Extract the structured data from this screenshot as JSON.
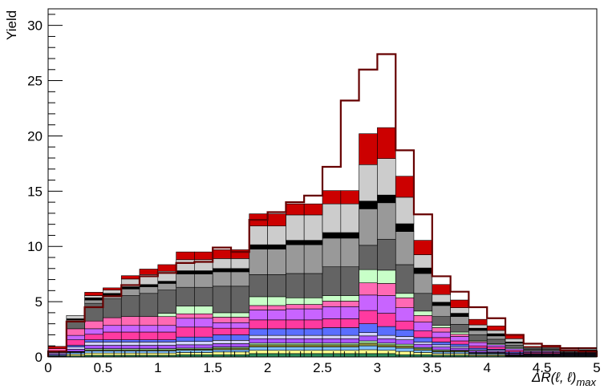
{
  "chart_data": {
    "type": "bar",
    "subtype": "stacked-histogram",
    "title": "",
    "xlabel": "ΔR(ℓ, ℓ)max",
    "ylabel": "Yield",
    "xlim": [
      0,
      5
    ],
    "ylim": [
      0,
      31.5
    ],
    "xticks": [
      "0",
      "0.5",
      "1",
      "1.5",
      "2",
      "2.5",
      "3",
      "3.5",
      "4",
      "4.5",
      "5"
    ],
    "yticks": [
      "0",
      "5",
      "10",
      "15",
      "20",
      "25",
      "30"
    ],
    "bin_edges": [
      0,
      0.167,
      0.333,
      0.5,
      0.667,
      0.833,
      1.0,
      1.167,
      1.333,
      1.5,
      1.667,
      1.833,
      2.0,
      2.167,
      2.333,
      2.5,
      2.667,
      2.833,
      3.0,
      3.167,
      3.333,
      3.5,
      3.667,
      3.833,
      4.0,
      4.167,
      4.333,
      4.5,
      4.667,
      4.833,
      5.0
    ],
    "series": [
      {
        "color": "#2a8c5a",
        "values": [
          0.05,
          0.1,
          0.15,
          0.15,
          0.15,
          0.15,
          0.15,
          0.2,
          0.2,
          0.2,
          0.2,
          0.3,
          0.3,
          0.3,
          0.3,
          0.3,
          0.3,
          0.3,
          0.3,
          0.2,
          0.2,
          0.15,
          0.15,
          0.1,
          0.1,
          0.05,
          0.05,
          0.05,
          0.05,
          0.05
        ]
      },
      {
        "color": "#ffff8c",
        "values": [
          0.05,
          0.15,
          0.2,
          0.2,
          0.2,
          0.2,
          0.2,
          0.2,
          0.2,
          0.25,
          0.25,
          0.3,
          0.3,
          0.3,
          0.3,
          0.3,
          0.3,
          0.35,
          0.3,
          0.3,
          0.2,
          0.15,
          0.15,
          0.1,
          0.1,
          0.05,
          0.05,
          0.05,
          0.05,
          0.05
        ]
      },
      {
        "color": "#7fbfff",
        "values": [
          0.1,
          0.15,
          0.2,
          0.2,
          0.2,
          0.2,
          0.2,
          0.2,
          0.2,
          0.2,
          0.2,
          0.3,
          0.3,
          0.3,
          0.3,
          0.3,
          0.3,
          0.35,
          0.3,
          0.3,
          0.2,
          0.15,
          0.15,
          0.1,
          0.1,
          0.05,
          0.05,
          0.05,
          0.05,
          0.05
        ]
      },
      {
        "color": "#8a8a3a",
        "values": [
          0.0,
          0.05,
          0.1,
          0.1,
          0.1,
          0.1,
          0.1,
          0.1,
          0.1,
          0.15,
          0.15,
          0.2,
          0.2,
          0.2,
          0.2,
          0.2,
          0.2,
          0.25,
          0.2,
          0.2,
          0.15,
          0.1,
          0.1,
          0.05,
          0.05,
          0.05,
          0.0,
          0.0,
          0.0,
          0.0
        ]
      },
      {
        "color": "#b4ffb4",
        "values": [
          0.0,
          0.05,
          0.1,
          0.1,
          0.1,
          0.1,
          0.1,
          0.1,
          0.1,
          0.1,
          0.1,
          0.15,
          0.15,
          0.15,
          0.15,
          0.15,
          0.15,
          0.2,
          0.15,
          0.15,
          0.1,
          0.1,
          0.05,
          0.05,
          0.05,
          0.0,
          0.0,
          0.0,
          0.0,
          0.0
        ]
      },
      {
        "color": "#aa55ff",
        "values": [
          0.1,
          0.2,
          0.3,
          0.3,
          0.3,
          0.3,
          0.3,
          0.3,
          0.3,
          0.3,
          0.3,
          0.4,
          0.4,
          0.4,
          0.4,
          0.4,
          0.4,
          0.45,
          0.4,
          0.4,
          0.3,
          0.25,
          0.2,
          0.15,
          0.1,
          0.1,
          0.05,
          0.05,
          0.05,
          0.05
        ]
      },
      {
        "color": "#d2d2ff",
        "values": [
          0.1,
          0.2,
          0.3,
          0.3,
          0.3,
          0.3,
          0.3,
          0.3,
          0.3,
          0.3,
          0.3,
          0.3,
          0.3,
          0.3,
          0.3,
          0.3,
          0.3,
          0.3,
          0.3,
          0.3,
          0.2,
          0.2,
          0.15,
          0.1,
          0.1,
          0.05,
          0.05,
          0.05,
          0.05,
          0.05
        ]
      },
      {
        "color": "#5a6eff",
        "values": [
          0.05,
          0.15,
          0.2,
          0.2,
          0.2,
          0.2,
          0.2,
          0.4,
          0.4,
          0.5,
          0.5,
          0.6,
          0.6,
          0.6,
          0.6,
          0.7,
          0.7,
          0.8,
          0.8,
          0.6,
          0.4,
          0.25,
          0.2,
          0.15,
          0.1,
          0.1,
          0.05,
          0.05,
          0.05,
          0.05
        ]
      },
      {
        "color": "#ff3aa0",
        "values": [
          0.0,
          0.5,
          0.5,
          0.7,
          0.7,
          0.7,
          0.7,
          0.9,
          0.9,
          0.6,
          0.6,
          0.8,
          0.8,
          0.8,
          0.8,
          0.8,
          0.8,
          1.2,
          1.2,
          0.8,
          0.6,
          0.4,
          0.3,
          0.2,
          0.2,
          0.15,
          0.1,
          0.1,
          0.05,
          0.05
        ]
      },
      {
        "color": "#c864ff",
        "values": [
          0.0,
          0.4,
          0.5,
          0.6,
          0.6,
          0.6,
          0.6,
          0.8,
          0.8,
          0.5,
          0.5,
          0.9,
          0.9,
          1.0,
          1.0,
          1.1,
          1.1,
          1.4,
          1.6,
          1.2,
          0.8,
          0.5,
          0.4,
          0.3,
          0.2,
          0.15,
          0.1,
          0.1,
          0.05,
          0.05
        ]
      },
      {
        "color": "#ff69b4",
        "values": [
          0.3,
          0.6,
          0.7,
          0.7,
          0.8,
          0.8,
          0.8,
          0.4,
          0.4,
          0.5,
          0.5,
          0.4,
          0.4,
          0.4,
          0.4,
          0.5,
          0.5,
          1.1,
          1.1,
          0.9,
          0.6,
          0.4,
          0.2,
          0.1,
          0.0,
          0.0,
          0.0,
          0.0,
          0.0,
          0.0
        ]
      },
      {
        "color": "#c8ffc8",
        "values": [
          0.0,
          0.0,
          0.0,
          0.0,
          0.0,
          0.0,
          0.3,
          0.7,
          0.7,
          0.4,
          0.4,
          0.8,
          0.8,
          0.6,
          0.6,
          0.5,
          0.5,
          1.2,
          1.2,
          0.4,
          0.4,
          0.2,
          0.2,
          0.1,
          0.1,
          0.1,
          0.0,
          0.0,
          0.0,
          0.0
        ]
      },
      {
        "color": "#646464",
        "values": [
          0.0,
          0.6,
          1.6,
          1.7,
          1.9,
          2.1,
          2.1,
          1.7,
          1.7,
          2.4,
          2.4,
          2.0,
          2.0,
          2.2,
          2.2,
          2.6,
          2.6,
          2.2,
          2.8,
          2.6,
          1.6,
          0.8,
          0.7,
          0.5,
          0.4,
          0.2,
          0.1,
          0.1,
          0.1,
          0.1
        ]
      },
      {
        "color": "#999999",
        "values": [
          0.0,
          0.2,
          0.3,
          0.3,
          0.6,
          0.6,
          0.6,
          1.2,
          1.2,
          1.3,
          1.3,
          2.3,
          2.3,
          2.6,
          2.6,
          2.6,
          2.6,
          3.3,
          3.3,
          3.0,
          1.8,
          1.0,
          0.7,
          0.4,
          0.3,
          0.2,
          0.1,
          0.1,
          0.1,
          0.1
        ]
      },
      {
        "color": "#000000",
        "values": [
          0.0,
          0.1,
          0.2,
          0.2,
          0.2,
          0.2,
          0.2,
          0.3,
          0.3,
          0.3,
          0.3,
          0.4,
          0.4,
          0.4,
          0.4,
          0.5,
          0.5,
          0.7,
          0.7,
          0.7,
          0.5,
          0.3,
          0.3,
          0.2,
          0.2,
          0.1,
          0.05,
          0.05,
          0.05,
          0.05
        ]
      },
      {
        "color": "#cccccc",
        "values": [
          0.0,
          0.3,
          0.2,
          0.3,
          0.7,
          0.9,
          0.9,
          1.0,
          1.0,
          0.9,
          0.9,
          1.7,
          1.7,
          2.3,
          2.3,
          2.6,
          2.6,
          3.3,
          3.3,
          2.4,
          1.2,
          0.7,
          0.5,
          0.3,
          0.3,
          0.3,
          0.1,
          0.1,
          0.1,
          0.1
        ]
      },
      {
        "color": "#cc0000",
        "values": [
          0.2,
          0.0,
          0.3,
          0.2,
          0.3,
          0.5,
          0.6,
          0.7,
          0.7,
          0.8,
          0.8,
          1.1,
          1.1,
          1.0,
          1.0,
          1.2,
          1.2,
          2.8,
          2.8,
          1.9,
          1.3,
          0.9,
          0.7,
          0.5,
          0.4,
          0.3,
          0.1,
          0.1,
          0.1,
          0.1
        ]
      }
    ],
    "total_outline": {
      "color": "#660000",
      "values": [
        0.5,
        3.2,
        4.5,
        5.5,
        6.5,
        7.3,
        7.6,
        8.5,
        8.6,
        9.9,
        9.5,
        12.4,
        13.1,
        14.0,
        14.6,
        17.2,
        23.2,
        26.0,
        27.4,
        18.7,
        12.9,
        7.3,
        5.9,
        4.5,
        3.5,
        2.0,
        1.2,
        1.0,
        0.6,
        0.5
      ]
    }
  }
}
